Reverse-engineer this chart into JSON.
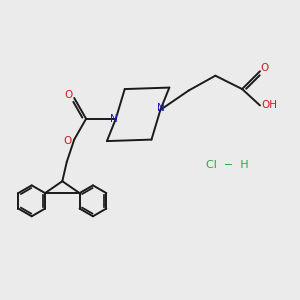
{
  "bg_color": "#ebebeb",
  "bond_color": "#1a1a1a",
  "nitrogen_color": "#1a1acc",
  "oxygen_color": "#cc1a1a",
  "hcl_color": "#22aa44",
  "figsize": [
    3.0,
    3.0
  ],
  "dpi": 100,
  "xlim": [
    0,
    10
  ],
  "ylim": [
    0,
    10
  ]
}
